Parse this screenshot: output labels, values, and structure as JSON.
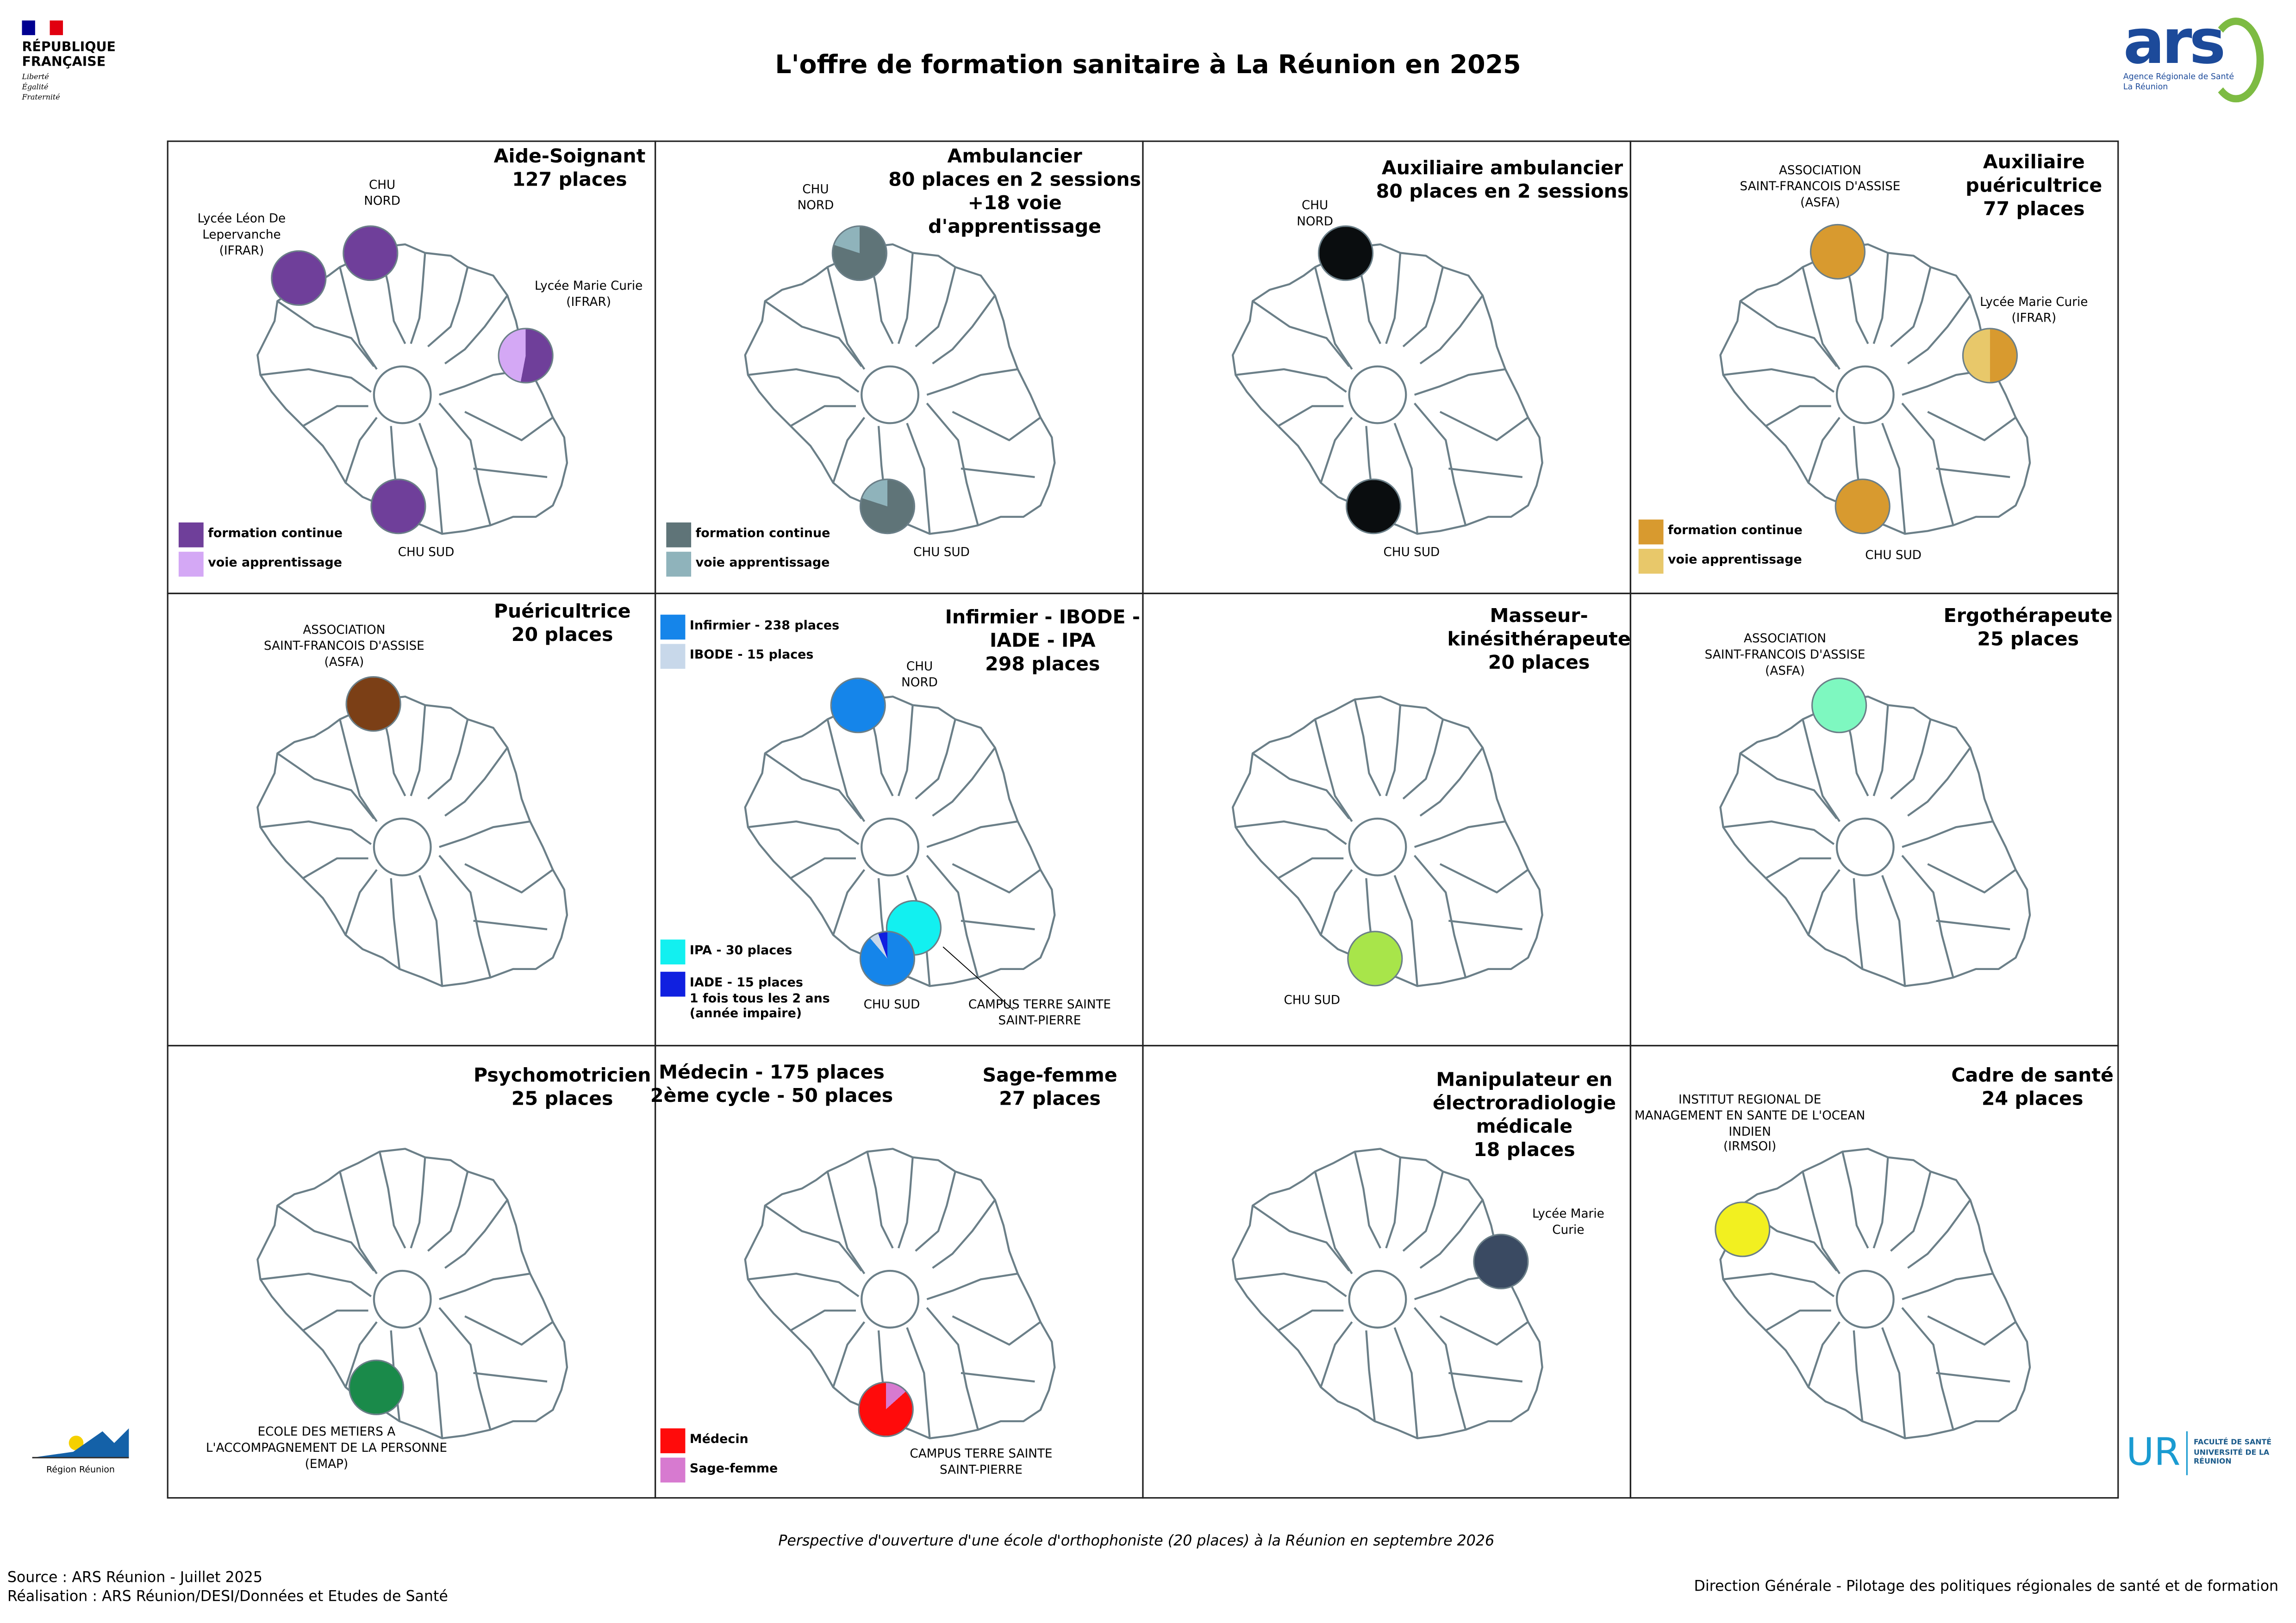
{
  "header": {
    "title": "L'offre de formation sanitaire à La Réunion en 2025",
    "logo_left": "RÉPUBLIQUE FRANÇAISE",
    "logo_left_motto": "Liberté Égalité Fraternité",
    "logo_right": "ars",
    "logo_right_sub": "Agence Régionale de Santé La Réunion"
  },
  "panels": [
    {
      "title": "Aide-Soignant\n127 places",
      "legend": [
        {
          "label": "formation continue",
          "color": "#6f3f9a"
        },
        {
          "label": "voie apprentissage",
          "color": "#d4a8f5"
        }
      ],
      "sites": [
        {
          "label": "Lycée Léon De\nLepervanche\n(IFRAR)",
          "slices": [
            {
              "color": "#6f3f9a",
              "share": 1
            }
          ]
        },
        {
          "label": "CHU\nNORD",
          "slices": [
            {
              "color": "#6f3f9a",
              "share": 1
            }
          ]
        },
        {
          "label": "Lycée Marie Curie\n(IFRAR)",
          "slices": [
            {
              "color": "#6f3f9a",
              "share": 0.53
            },
            {
              "color": "#d4a8f5",
              "share": 0.47
            }
          ]
        },
        {
          "label": "CHU SUD",
          "slices": [
            {
              "color": "#6f3f9a",
              "share": 1
            }
          ]
        }
      ]
    },
    {
      "title": "Ambulancier\n80 places en 2 sessions\n+18 voie\nd'apprentissage",
      "legend": [
        {
          "label": "formation continue",
          "color": "#5f7478"
        },
        {
          "label": "voie apprentissage",
          "color": "#8fb3bb"
        }
      ],
      "sites": [
        {
          "label": "CHU\nNORD",
          "slices": [
            {
              "color": "#5f7478",
              "share": 0.8
            },
            {
              "color": "#8fb3bb",
              "share": 0.2
            }
          ]
        },
        {
          "label": "CHU SUD",
          "slices": [
            {
              "color": "#5f7478",
              "share": 0.8
            },
            {
              "color": "#8fb3bb",
              "share": 0.2
            }
          ]
        }
      ]
    },
    {
      "title": "Auxiliaire ambulancier\n80 places en 2 sessions",
      "sites": [
        {
          "label": "CHU\nNORD",
          "slices": [
            {
              "color": "#0a0d0f",
              "share": 1
            }
          ]
        },
        {
          "label": "CHU SUD",
          "slices": [
            {
              "color": "#0a0d0f",
              "share": 1
            }
          ]
        }
      ]
    },
    {
      "title": "Auxiliaire\npuéricultrice\n77 places",
      "legend": [
        {
          "label": "formation continue",
          "color": "#d89a2f"
        },
        {
          "label": "voie apprentissage",
          "color": "#e8c86a"
        }
      ],
      "sites": [
        {
          "label": "ASSOCIATION\nSAINT-FRANCOIS D'ASSISE\n(ASFA)",
          "slices": [
            {
              "color": "#d89a2f",
              "share": 1
            }
          ]
        },
        {
          "label": "Lycée Marie Curie\n(IFRAR)",
          "slices": [
            {
              "color": "#d89a2f",
              "share": 0.5
            },
            {
              "color": "#e8c86a",
              "share": 0.5
            }
          ]
        },
        {
          "label": "CHU SUD",
          "slices": [
            {
              "color": "#d89a2f",
              "share": 1
            }
          ]
        }
      ]
    },
    {
      "title": "Puéricultrice\n20 places",
      "sites": [
        {
          "label": "ASSOCIATION\nSAINT-FRANCOIS D'ASSISE\n(ASFA)",
          "slices": [
            {
              "color": "#7b3f16",
              "share": 1
            }
          ]
        }
      ]
    },
    {
      "title": "Infirmier - IBODE -\nIADE - IPA\n298 places",
      "legend": [
        {
          "label": "Infirmier - 238 places",
          "color": "#1585ea",
          "value": 238
        },
        {
          "label": "IBODE - 15 places",
          "color": "#c8d8ea",
          "value": 15
        },
        {
          "label": "IPA - 30 places",
          "color": "#12f0f0",
          "value": 30
        },
        {
          "label": "IADE - 15 places\n1 fois tous les 2 ans\n(année impaire)",
          "color": "#1020e0",
          "value": 15
        }
      ],
      "sites": [
        {
          "label": "CHU\nNORD",
          "slices": [
            {
              "color": "#1585ea",
              "share": 1
            }
          ]
        },
        {
          "label": "CAMPUS TERRE SAINTE\nSAINT-PIERRE",
          "slices": [
            {
              "color": "#12f0f0",
              "share": 1
            }
          ]
        },
        {
          "label": "CHU SUD",
          "slices": [
            {
              "color": "#1585ea",
              "share": 238
            },
            {
              "color": "#c8d8ea",
              "share": 15
            },
            {
              "color": "#1020e0",
              "share": 15
            }
          ]
        }
      ]
    },
    {
      "title": "Masseur-\nkinésithérapeute\n20 places",
      "sites": [
        {
          "label": "CHU SUD",
          "slices": [
            {
              "color": "#a8e54a",
              "share": 1
            }
          ]
        }
      ]
    },
    {
      "title": "Ergothérapeute\n25 places",
      "sites": [
        {
          "label": "ASSOCIATION\nSAINT-FRANCOIS D'ASSISE\n(ASFA)",
          "slices": [
            {
              "color": "#7ef8c0",
              "share": 1
            }
          ]
        }
      ]
    },
    {
      "title": "Psychomotricien\n25 places",
      "sites": [
        {
          "label": "ECOLE DES METIERS A\nL'ACCOMPAGNEMENT DE LA PERSONNE\n(EMAP)",
          "slices": [
            {
              "color": "#1a8a4a",
              "share": 1
            }
          ]
        }
      ]
    },
    {
      "title": "Médecin - 175 places\n2ème cycle - 50 places",
      "title2": "Sage-femme\n27 places",
      "legend": [
        {
          "label": "Médecin",
          "color": "#ff0b0b"
        },
        {
          "label": "Sage-femme",
          "color": "#d77ad0"
        }
      ],
      "sites": [
        {
          "label": "CAMPUS TERRE SAINTE\nSAINT-PIERRE",
          "slices": [
            {
              "color": "#d77ad0",
              "share": 27
            },
            {
              "color": "#ff0b0b",
              "share": 175
            }
          ]
        }
      ]
    },
    {
      "title": "Manipulateur en\nélectroradiologie\nmédicale\n18 places",
      "sites": [
        {
          "label": "Lycée Marie\nCurie",
          "slices": [
            {
              "color": "#3a4a62",
              "share": 1
            }
          ]
        }
      ]
    },
    {
      "title": "Cadre de santé\n24 places",
      "sites": [
        {
          "label": "INSTITUT REGIONAL DE\nMANAGEMENT EN SANTE DE L'OCEAN\nINDIEN\n(IRMSOI)",
          "slices": [
            {
              "color": "#f2f020",
              "share": 1
            }
          ]
        }
      ]
    }
  ],
  "footer": {
    "perspective": "Perspective d'ouverture d'une école d'orthophoniste (20 places) à la Réunion en septembre 2026",
    "source": "Source : ARS Réunion - Juillet 2025",
    "realisation": "Réalisation : ARS Réunion/DESI/Données et Etudes de Santé",
    "direction": "Direction Générale - Pilotage des politiques régionales de santé et de formation",
    "logo_region": "Région Réunion",
    "logo_ur": "UR",
    "logo_ur_sub": "FACULTÉ DE SANTÉ UNIVERSITÉ DE LA RÉUNION"
  }
}
